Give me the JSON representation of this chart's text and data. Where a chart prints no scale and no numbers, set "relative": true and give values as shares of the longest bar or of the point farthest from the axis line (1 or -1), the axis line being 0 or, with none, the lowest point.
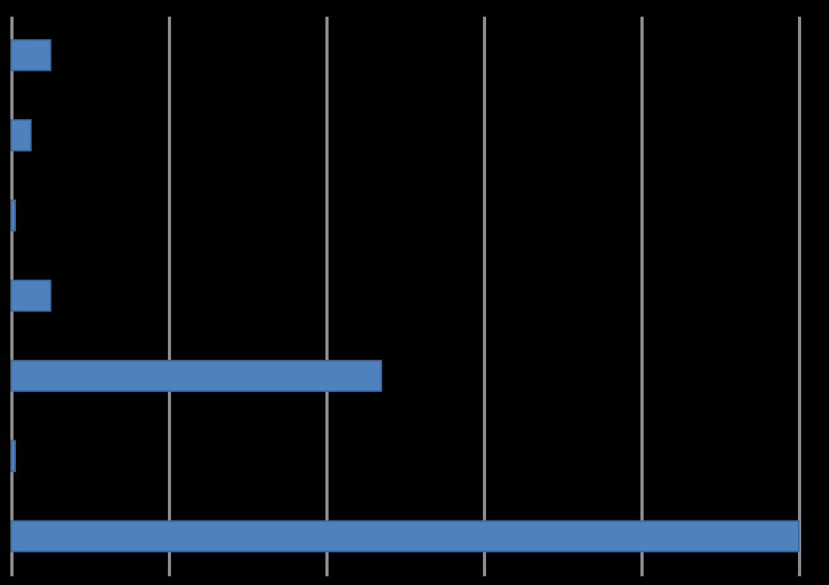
{
  "chart_data": {
    "type": "bar",
    "orientation": "horizontal",
    "relative": true,
    "grid": true,
    "color": "#4f81bd",
    "categories": [
      null,
      null,
      null,
      null,
      null,
      null,
      null
    ],
    "values": [
      0.05,
      0.025,
      0.005,
      0.05,
      0.47,
      0.005,
      1
    ]
  }
}
